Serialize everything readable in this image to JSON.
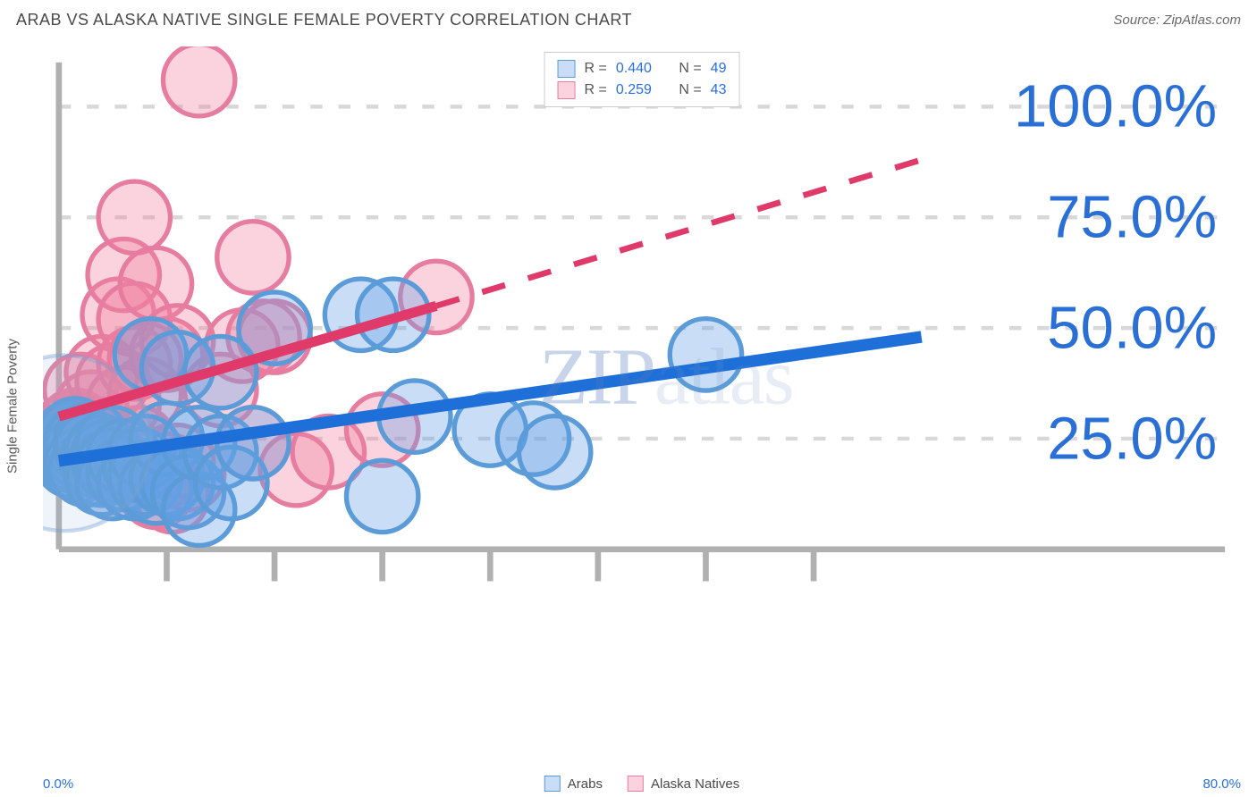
{
  "header": {
    "title": "ARAB VS ALASKA NATIVE SINGLE FEMALE POVERTY CORRELATION CHART",
    "source_prefix": "Source: ",
    "source_name": "ZipAtlas.com"
  },
  "y_axis": {
    "label": "Single Female Poverty"
  },
  "chart": {
    "type": "scatter",
    "xlim": [
      0,
      80
    ],
    "ylim": [
      0,
      110
    ],
    "y_gridlines": [
      25,
      50,
      75,
      100
    ],
    "y_tick_labels": [
      "25.0%",
      "50.0%",
      "75.0%",
      "100.0%"
    ],
    "x_ticks": [
      10,
      20,
      30,
      40,
      50,
      60,
      70
    ],
    "x_origin_label": "0.0%",
    "x_max_label": "80.0%",
    "background_color": "#ffffff",
    "grid_color": "#d8d8d8",
    "axis_color": "#b0b0b0",
    "tick_label_color": "#2a6fd6",
    "series": {
      "arabs": {
        "label": "Arabs",
        "fill": "rgba(100,160,230,0.35)",
        "stroke": "#5a9bd8",
        "trend_color": "#1e6fd8",
        "trend_dash": "none",
        "trend_start_y": 20,
        "trend_end_x": 80,
        "trend_end_y": 48,
        "marker_r": 9,
        "points": [
          [
            0.5,
            24
          ],
          [
            0.8,
            23
          ],
          [
            1,
            22
          ],
          [
            1,
            25
          ],
          [
            1.2,
            20
          ],
          [
            1.5,
            26
          ],
          [
            1.5,
            21
          ],
          [
            2,
            22
          ],
          [
            2,
            24
          ],
          [
            2,
            19
          ],
          [
            2.5,
            18
          ],
          [
            3,
            25
          ],
          [
            3,
            23
          ],
          [
            3.5,
            20
          ],
          [
            4,
            22
          ],
          [
            4,
            18
          ],
          [
            4,
            16
          ],
          [
            4.5,
            21
          ],
          [
            5,
            24
          ],
          [
            5,
            19
          ],
          [
            5,
            15
          ],
          [
            6,
            17
          ],
          [
            6,
            21
          ],
          [
            7,
            15
          ],
          [
            7.5,
            19
          ],
          [
            8,
            16
          ],
          [
            8,
            22
          ],
          [
            8.5,
            44
          ],
          [
            9,
            14
          ],
          [
            10,
            16
          ],
          [
            10,
            25
          ],
          [
            11,
            15
          ],
          [
            11,
            41
          ],
          [
            12,
            13
          ],
          [
            13,
            9
          ],
          [
            13,
            24
          ],
          [
            15,
            40
          ],
          [
            15,
            22
          ],
          [
            16,
            15
          ],
          [
            18,
            24
          ],
          [
            20,
            50
          ],
          [
            28,
            53
          ],
          [
            30,
            12
          ],
          [
            31,
            53
          ],
          [
            33,
            30
          ],
          [
            40,
            27
          ],
          [
            44,
            25
          ],
          [
            46,
            22
          ],
          [
            60,
            44
          ]
        ]
      },
      "alaska": {
        "label": "Alaska Natives",
        "fill": "rgba(240,130,160,0.35)",
        "stroke": "#e67da0",
        "trend_color": "#e03a6a",
        "trend_dash": "6,6",
        "trend_start_y": 30,
        "trend_mid_x": 35,
        "trend_mid_y": 55,
        "trend_end_x": 80,
        "trend_end_y": 88,
        "marker_r": 9,
        "points": [
          [
            0.5,
            26
          ],
          [
            0.8,
            24
          ],
          [
            1,
            22
          ],
          [
            1,
            27
          ],
          [
            1.5,
            28
          ],
          [
            2,
            27
          ],
          [
            2,
            22
          ],
          [
            2,
            36
          ],
          [
            2.5,
            24
          ],
          [
            3,
            32
          ],
          [
            3.5,
            26
          ],
          [
            4,
            20
          ],
          [
            4,
            40
          ],
          [
            5,
            38
          ],
          [
            5,
            20
          ],
          [
            5.5,
            53
          ],
          [
            6,
            62
          ],
          [
            6,
            33
          ],
          [
            7,
            42
          ],
          [
            7,
            52
          ],
          [
            7,
            75
          ],
          [
            7.5,
            24
          ],
          [
            8,
            43
          ],
          [
            8,
            35
          ],
          [
            9,
            60
          ],
          [
            9,
            13
          ],
          [
            10,
            18
          ],
          [
            10,
            44
          ],
          [
            10.5,
            12
          ],
          [
            11,
            20
          ],
          [
            11,
            47
          ],
          [
            12,
            17
          ],
          [
            13,
            106
          ],
          [
            15,
            36
          ],
          [
            17,
            46
          ],
          [
            18,
            66
          ],
          [
            18,
            24
          ],
          [
            19,
            48
          ],
          [
            20,
            48
          ],
          [
            22,
            18
          ],
          [
            25,
            22
          ],
          [
            30,
            27
          ],
          [
            35,
            57
          ]
        ]
      }
    }
  },
  "top_legend": {
    "r_label": "R =",
    "n_label": "N =",
    "rows": [
      {
        "swatch_fill": "rgba(100,160,230,0.35)",
        "swatch_stroke": "#5a9bd8",
        "r": "0.440",
        "n": "49"
      },
      {
        "swatch_fill": "rgba(240,130,160,0.35)",
        "swatch_stroke": "#e67da0",
        "r": "0.259",
        "n": "43"
      }
    ]
  },
  "bottom_legend": {
    "items": [
      {
        "swatch_fill": "rgba(100,160,230,0.35)",
        "swatch_stroke": "#5a9bd8",
        "label": "Arabs"
      },
      {
        "swatch_fill": "rgba(240,130,160,0.35)",
        "swatch_stroke": "#e67da0",
        "label": "Alaska Natives"
      }
    ]
  },
  "watermark": {
    "strong": "ZIP",
    "light": "atlas"
  }
}
